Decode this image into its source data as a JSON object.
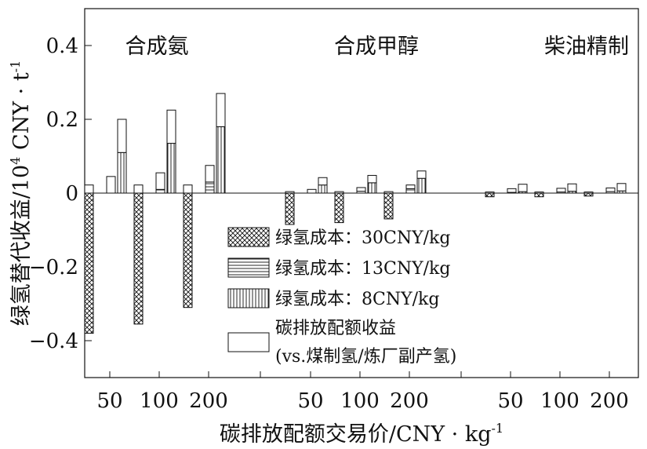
{
  "chart_data": {
    "type": "bar",
    "xlabel": "碳排放配额交易价/CNY · kg",
    "xlabel_sup": "-1",
    "ylabel": "绿氢替代收益/10",
    "ylabel_sup": "4",
    "ylabel_unit": " CNY · t",
    "ylabel_unit_sup": "-1",
    "ylim": [
      -0.5,
      0.5
    ],
    "yticks": [
      {
        "value": 0.4,
        "label": "0.4"
      },
      {
        "value": 0.2,
        "label": "0.2"
      },
      {
        "value": 0.0,
        "label": "0"
      },
      {
        "value": -0.2,
        "label": "−0.2"
      },
      {
        "value": -0.4,
        "label": "−0.4"
      }
    ],
    "groups": [
      {
        "name": "合成氨",
        "categories": [
          "50",
          "100",
          "200"
        ]
      },
      {
        "name": "合成甲醇",
        "categories": [
          "50",
          "100",
          "200"
        ]
      },
      {
        "name": "柴油精制",
        "categories": [
          "50",
          "100",
          "200"
        ]
      }
    ],
    "series": [
      {
        "name": "绿氢成本：30CNY/kg",
        "pattern": "crosshatch",
        "values": [
          [
            -0.38,
            -0.355,
            -0.31
          ],
          [
            -0.085,
            -0.08,
            -0.07
          ],
          [
            -0.01,
            -0.01,
            -0.008
          ]
        ]
      },
      {
        "name": "绿氢成本：13CNY/kg",
        "pattern": "horizontal",
        "values": [
          [
            0.0,
            0.01,
            0.03
          ],
          [
            0.0,
            0.005,
            0.012
          ],
          [
            0.002,
            0.003,
            0.004
          ]
        ]
      },
      {
        "name": "绿氢成本：8CNY/kg",
        "pattern": "vertical",
        "values": [
          [
            0.11,
            0.135,
            0.18
          ],
          [
            0.022,
            0.028,
            0.04
          ],
          [
            0.004,
            0.005,
            0.006
          ]
        ]
      },
      {
        "name": "碳排放配额收益",
        "name_line2": "(vs.煤制氢/炼厂副产氢)",
        "pattern": "none",
        "values": [
          [
            0.022,
            0.022,
            0.022
          ],
          [
            0.004,
            0.006,
            0.01
          ],
          [
            0.003,
            0.006,
            0.012
          ]
        ]
      }
    ],
    "carbon_offsets": [
      [
        [
          0.022,
          0.045,
          0.09
        ],
        [
          0.022,
          0.045,
          0.09
        ],
        [
          0.022,
          0.045,
          0.09
        ]
      ],
      [
        [
          0.004,
          0.01,
          0.02
        ],
        [
          0.004,
          0.01,
          0.02
        ],
        [
          0.004,
          0.01,
          0.02
        ]
      ],
      [
        [
          0.003,
          0.01,
          0.02
        ],
        [
          0.003,
          0.01,
          0.02
        ],
        [
          0.003,
          0.01,
          0.02
        ]
      ]
    ],
    "grid": false,
    "legend_position": "lower-center-inside"
  }
}
